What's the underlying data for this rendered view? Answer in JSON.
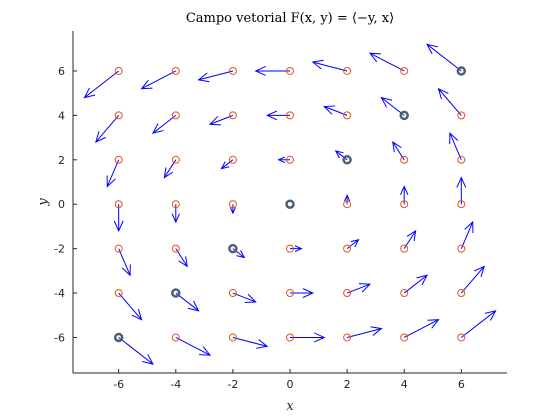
{
  "chart_data": {
    "type": "quiver",
    "title": "Campo vetorial F(x, y) = ⟨−y, x⟩",
    "xlabel": "x",
    "ylabel": "y",
    "xlim": [
      -7.6,
      7.6
    ],
    "ylim": [
      -7.6,
      7.8
    ],
    "xticks": [
      -6,
      -4,
      -2,
      0,
      2,
      4,
      6
    ],
    "yticks": [
      -6,
      -4,
      -2,
      0,
      2,
      4,
      6
    ],
    "xtick_labels": [
      "-6",
      "-4",
      "-2",
      "0",
      "2",
      "4",
      "6"
    ],
    "ytick_labels": [
      "-6",
      "-4",
      "-2",
      "0",
      "2",
      "4",
      "6"
    ],
    "grid": false,
    "box": "axes lines on left and bottom only",
    "vector_scale": 0.2,
    "grid_points": [
      -6,
      -4,
      -2,
      0,
      2,
      4,
      6
    ],
    "highlighted_points": [
      [
        -6,
        -6
      ],
      [
        -4,
        -4
      ],
      [
        -2,
        -2
      ],
      [
        0,
        0
      ],
      [
        2,
        2
      ],
      [
        4,
        4
      ],
      [
        6,
        6
      ]
    ],
    "colors": {
      "arrow": "#0000ff",
      "point_marker": "#e5531a",
      "highlight_marker": "#4d6173",
      "axis": "#262626"
    }
  }
}
